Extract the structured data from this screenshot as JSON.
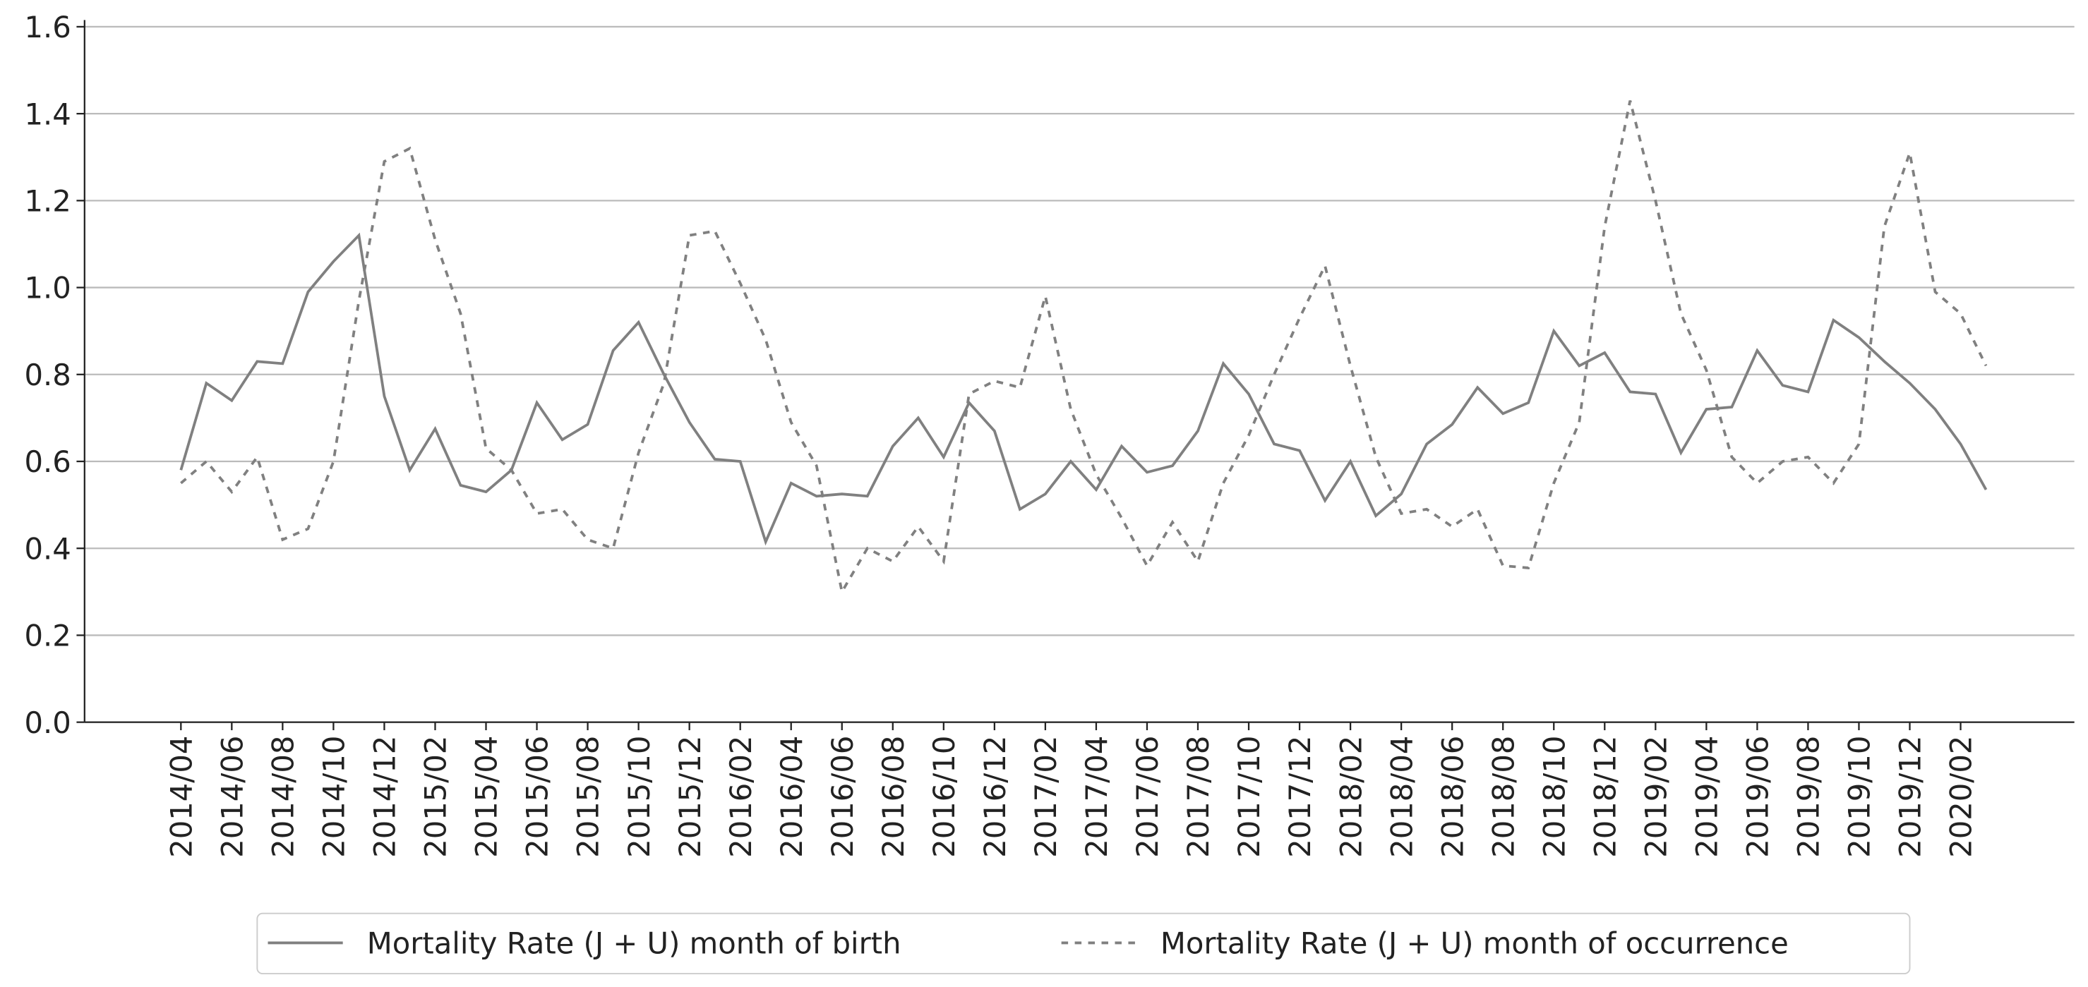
{
  "chart_data": {
    "type": "line",
    "categories": [
      "2014/04",
      null,
      "2014/06",
      null,
      "2014/08",
      null,
      "2014/10",
      null,
      "2014/12",
      null,
      "2015/02",
      null,
      "2015/04",
      null,
      "2015/06",
      null,
      "2015/08",
      null,
      "2015/10",
      null,
      "2015/12",
      null,
      "2016/02",
      null,
      "2016/04",
      null,
      "2016/06",
      null,
      "2016/08",
      null,
      "2016/10",
      null,
      "2016/12",
      null,
      "2017/02",
      null,
      "2017/04",
      null,
      "2017/06",
      null,
      "2017/08",
      null,
      "2017/10",
      null,
      "2017/12",
      null,
      "2018/02",
      null,
      "2018/04",
      null,
      "2018/06",
      null,
      "2018/08",
      null,
      "2018/10",
      null,
      "2018/12",
      null,
      "2019/02",
      null,
      "2019/04",
      null,
      "2019/06",
      null,
      "2019/08",
      null,
      "2019/10",
      null,
      "2019/12",
      null,
      "2020/02",
      null
    ],
    "series": [
      {
        "name": "Mortality Rate (J + U) month of birth",
        "color": "#808080",
        "linestyle": "solid",
        "values": [
          0.58,
          0.78,
          0.74,
          0.83,
          0.825,
          0.99,
          1.06,
          1.12,
          0.75,
          0.58,
          0.675,
          0.545,
          0.53,
          0.58,
          0.735,
          0.65,
          0.685,
          0.855,
          0.92,
          0.8,
          0.69,
          0.605,
          0.6,
          0.415,
          0.55,
          0.52,
          0.525,
          0.52,
          0.635,
          0.7,
          0.61,
          0.735,
          0.67,
          0.49,
          0.525,
          0.6,
          0.535,
          0.635,
          0.575,
          0.59,
          0.67,
          0.825,
          0.755,
          0.64,
          0.625,
          0.51,
          0.6,
          0.475,
          0.525,
          0.64,
          0.685,
          0.77,
          0.71,
          0.735,
          0.9,
          0.82,
          0.85,
          0.76,
          0.755,
          0.62,
          0.72,
          0.725,
          0.855,
          0.775,
          0.76,
          0.925,
          0.885,
          0.83,
          0.78,
          0.72,
          0.64,
          0.535
        ]
      },
      {
        "name": "Mortality Rate (J + U) month of occurrence",
        "color": "#808080",
        "linestyle": "dashed",
        "values": [
          0.55,
          0.6,
          0.53,
          0.61,
          0.42,
          0.445,
          0.6,
          0.97,
          1.29,
          1.32,
          1.11,
          0.94,
          0.63,
          0.58,
          0.48,
          0.49,
          0.42,
          0.4,
          0.62,
          0.78,
          1.12,
          1.13,
          1.01,
          0.88,
          0.69,
          0.59,
          0.3,
          0.4,
          0.37,
          0.45,
          0.37,
          0.755,
          0.785,
          0.77,
          0.98,
          0.72,
          0.57,
          0.47,
          0.36,
          0.46,
          0.37,
          0.55,
          0.66,
          0.8,
          0.93,
          1.05,
          0.82,
          0.61,
          0.48,
          0.49,
          0.45,
          0.49,
          0.36,
          0.355,
          0.55,
          0.69,
          1.14,
          1.43,
          1.2,
          0.94,
          0.81,
          0.61,
          0.55,
          0.6,
          0.61,
          0.55,
          0.64,
          1.14,
          1.31,
          0.99,
          0.94,
          0.82
        ]
      }
    ],
    "ylim": [
      0,
      1.6
    ],
    "yticks": [
      {
        "value": 0,
        "label": "0.0"
      },
      0.2,
      0.4,
      0.6,
      0.8,
      {
        "value": 1,
        "label": "1.0"
      },
      1.2,
      1.4,
      1.6
    ],
    "grid": true,
    "legend": "bottom"
  }
}
